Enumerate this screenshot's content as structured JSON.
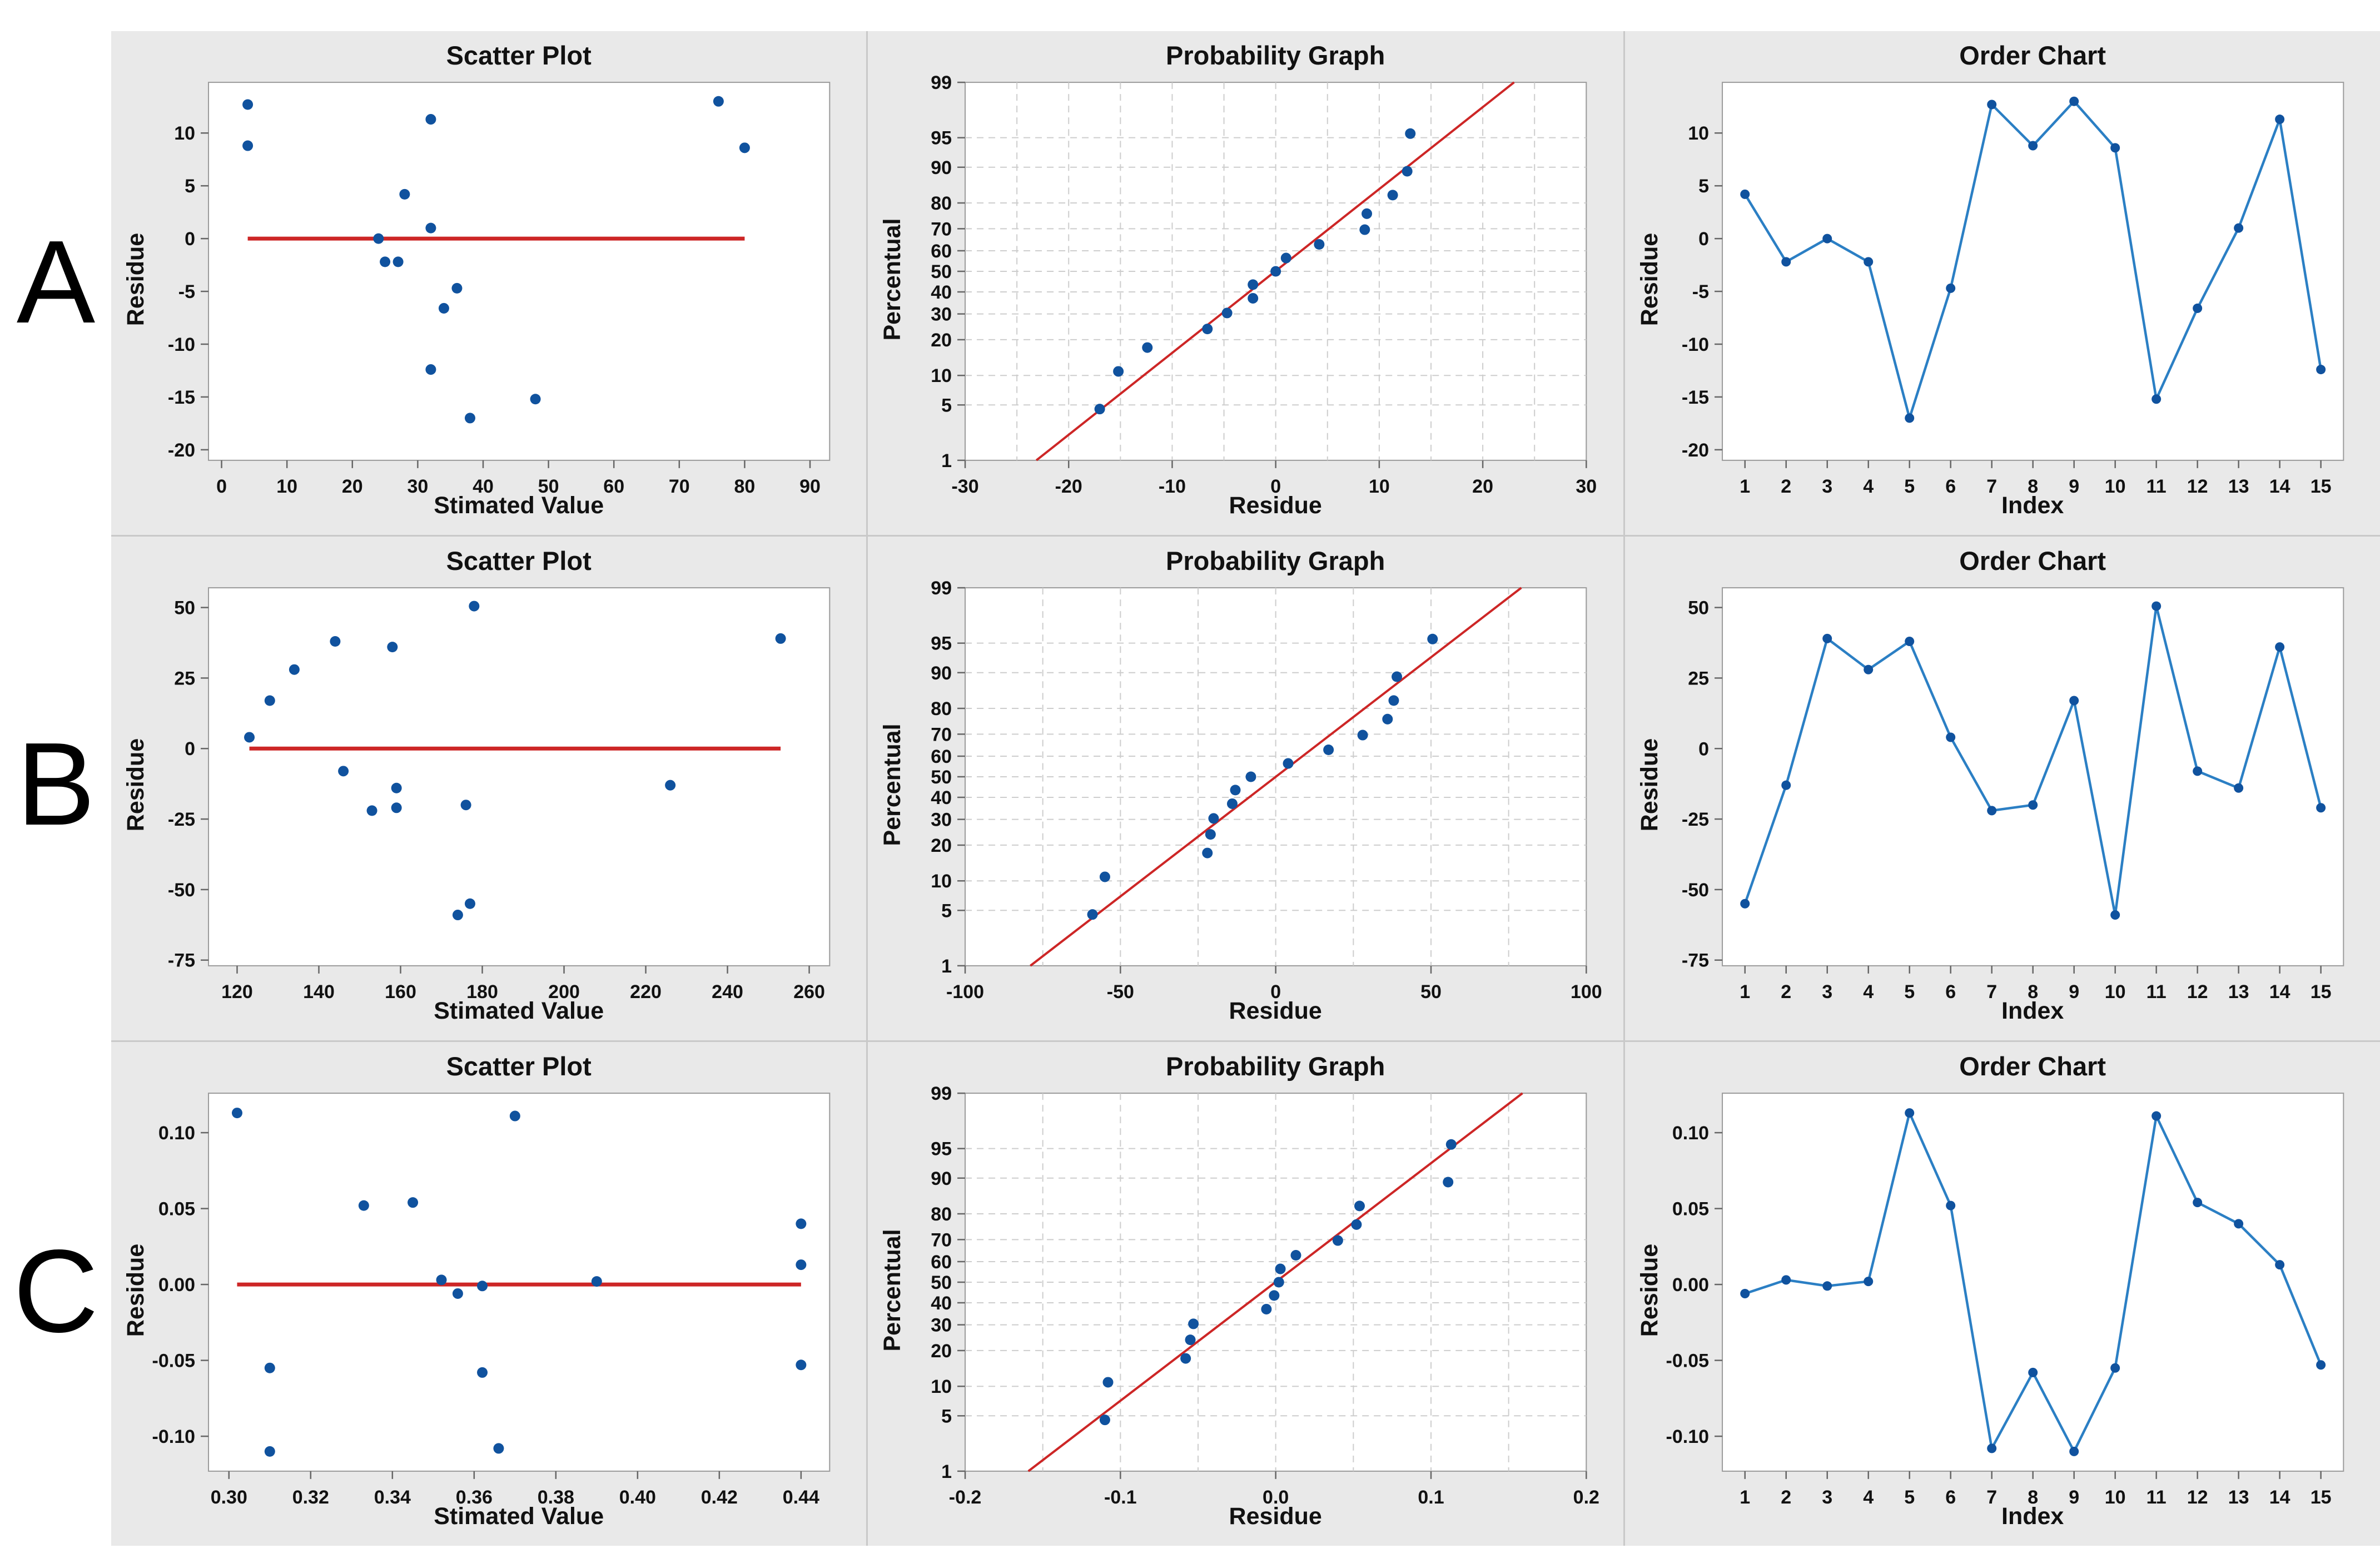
{
  "figure": {
    "kind": "residual-diagnostics-grid"
  },
  "rows": [
    {
      "label": "A"
    },
    {
      "label": "B"
    },
    {
      "label": "C"
    }
  ],
  "colors": {
    "point_blue": "#10529e",
    "line_blue": "#2b7fc4",
    "ref_red": "#cd2626",
    "panel_bg": "#e9e9e9",
    "divider_gray": "#c9c9c9",
    "plot_border": "#9b9b9b",
    "grid_dash": "#cdcdcd",
    "tick_mark": "#666666"
  },
  "chart_data": [
    {
      "row": "A",
      "type": "scatter",
      "title": "Scatter Plot",
      "xlabel": "Stimated Value",
      "ylabel": "Residue",
      "xlim": [
        -2,
        93
      ],
      "ylim": [
        -21,
        14.8
      ],
      "xticks": {
        "vals": [
          0,
          10,
          20,
          30,
          40,
          50,
          60,
          70,
          80,
          90
        ],
        "labels": [
          "0",
          "10",
          "20",
          "30",
          "40",
          "50",
          "60",
          "70",
          "80",
          "90"
        ]
      },
      "yticks": {
        "vals": [
          -20,
          -15,
          -10,
          -5,
          0,
          5,
          10
        ],
        "labels": [
          "-20",
          "-15",
          "-10",
          "-5",
          "0",
          "5",
          "10"
        ]
      },
      "refline_y": 0,
      "points": [
        [
          4,
          12.7
        ],
        [
          4,
          8.8
        ],
        [
          24,
          0
        ],
        [
          25,
          -2.2
        ],
        [
          27,
          -2.2
        ],
        [
          28,
          4.2
        ],
        [
          32,
          11.3
        ],
        [
          32,
          1
        ],
        [
          32,
          -12.4
        ],
        [
          34,
          -6.6
        ],
        [
          36,
          -4.7
        ],
        [
          38,
          -17
        ],
        [
          48,
          -15.2
        ],
        [
          76,
          13
        ],
        [
          80,
          8.6
        ]
      ]
    },
    {
      "row": "A",
      "type": "prob",
      "title": "Probability Graph",
      "xlabel": "Residue",
      "ylabel": "Percentual",
      "xlim": [
        -30,
        30
      ],
      "minor_step": 5,
      "xticks": {
        "vals": [
          -30,
          -20,
          -10,
          0,
          10,
          20,
          30
        ],
        "labels": [
          "-30",
          "-20",
          "-10",
          "0",
          "10",
          "20",
          "30"
        ]
      },
      "yticks": {
        "vals": [
          1,
          5,
          10,
          20,
          30,
          40,
          50,
          60,
          70,
          80,
          90,
          95,
          99
        ],
        "labels": [
          "1",
          "5",
          "10",
          "20",
          "30",
          "40",
          "50",
          "60",
          "70",
          "80",
          "90",
          "95",
          "99"
        ]
      },
      "points": [
        [
          -17,
          4.5
        ],
        [
          -15.2,
          10.9
        ],
        [
          -12.4,
          17.4
        ],
        [
          -6.6,
          23.9
        ],
        [
          -4.7,
          30.4
        ],
        [
          -2.2,
          37
        ],
        [
          -2.2,
          43.5
        ],
        [
          0,
          50
        ],
        [
          1,
          56.5
        ],
        [
          4.2,
          63
        ],
        [
          8.6,
          69.6
        ],
        [
          8.8,
          76.1
        ],
        [
          11.3,
          82.6
        ],
        [
          12.7,
          89.1
        ],
        [
          13,
          95.5
        ]
      ]
    },
    {
      "row": "A",
      "type": "order",
      "title": "Order Chart",
      "xlabel": "Index",
      "ylabel": "Residue",
      "xlim": [
        0.45,
        15.55
      ],
      "ylim": [
        -21,
        14.8
      ],
      "xticks": {
        "vals": [
          1,
          2,
          3,
          4,
          5,
          6,
          7,
          8,
          9,
          10,
          11,
          12,
          13,
          14,
          15
        ],
        "labels": [
          "1",
          "2",
          "3",
          "4",
          "5",
          "6",
          "7",
          "8",
          "9",
          "10",
          "11",
          "12",
          "13",
          "14",
          "15"
        ]
      },
      "yticks": {
        "vals": [
          -20,
          -15,
          -10,
          -5,
          0,
          5,
          10
        ],
        "labels": [
          "-20",
          "-15",
          "-10",
          "-5",
          "0",
          "5",
          "10"
        ]
      },
      "points": [
        [
          1,
          4.2
        ],
        [
          2,
          -2.2
        ],
        [
          3,
          0
        ],
        [
          4,
          -2.2
        ],
        [
          5,
          -17
        ],
        [
          6,
          -4.7
        ],
        [
          7,
          12.7
        ],
        [
          8,
          8.8
        ],
        [
          9,
          13
        ],
        [
          10,
          8.6
        ],
        [
          11,
          -15.2
        ],
        [
          12,
          -6.6
        ],
        [
          13,
          1
        ],
        [
          14,
          11.3
        ],
        [
          15,
          -12.4
        ]
      ]
    },
    {
      "row": "B",
      "type": "scatter",
      "title": "Scatter Plot",
      "xlabel": "Stimated Value",
      "ylabel": "Residue",
      "xlim": [
        113,
        265
      ],
      "ylim": [
        -77,
        57
      ],
      "xticks": {
        "vals": [
          120,
          140,
          160,
          180,
          200,
          220,
          240,
          260
        ],
        "labels": [
          "120",
          "140",
          "160",
          "180",
          "200",
          "220",
          "240",
          "260"
        ]
      },
      "yticks": {
        "vals": [
          -75,
          -50,
          -25,
          0,
          25,
          50
        ],
        "labels": [
          "-75",
          "-50",
          "-25",
          "0",
          "25",
          "50"
        ]
      },
      "refline_y": 0,
      "points": [
        [
          123,
          4
        ],
        [
          128,
          17
        ],
        [
          134,
          28
        ],
        [
          144,
          38
        ],
        [
          146,
          -8
        ],
        [
          153,
          -22
        ],
        [
          158,
          36
        ],
        [
          159,
          -14
        ],
        [
          159,
          -21
        ],
        [
          174,
          -59
        ],
        [
          176,
          -20
        ],
        [
          177,
          -55
        ],
        [
          178,
          50.5
        ],
        [
          226,
          -13
        ],
        [
          253,
          39
        ]
      ]
    },
    {
      "row": "B",
      "type": "prob",
      "title": "Probability Graph",
      "xlabel": "Residue",
      "ylabel": "Percentual",
      "xlim": [
        -100,
        100
      ],
      "minor_step": 25,
      "xticks": {
        "vals": [
          -100,
          -50,
          0,
          50,
          100
        ],
        "labels": [
          "-100",
          "-50",
          "0",
          "50",
          "100"
        ]
      },
      "yticks": {
        "vals": [
          1,
          5,
          10,
          20,
          30,
          40,
          50,
          60,
          70,
          80,
          90,
          95,
          99
        ],
        "labels": [
          "1",
          "5",
          "10",
          "20",
          "30",
          "40",
          "50",
          "60",
          "70",
          "80",
          "90",
          "95",
          "99"
        ]
      },
      "points": [
        [
          -59,
          4.5
        ],
        [
          -55,
          10.9
        ],
        [
          -22,
          17.4
        ],
        [
          -21,
          23.9
        ],
        [
          -20,
          30.4
        ],
        [
          -14,
          37
        ],
        [
          -13,
          43.5
        ],
        [
          -8,
          50
        ],
        [
          4,
          56.5
        ],
        [
          17,
          63
        ],
        [
          28,
          69.6
        ],
        [
          36,
          76.1
        ],
        [
          38,
          82.6
        ],
        [
          39,
          89.1
        ],
        [
          50.5,
          95.5
        ]
      ]
    },
    {
      "row": "B",
      "type": "order",
      "title": "Order Chart",
      "xlabel": "Index",
      "ylabel": "Residue",
      "xlim": [
        0.45,
        15.55
      ],
      "ylim": [
        -77,
        57
      ],
      "xticks": {
        "vals": [
          1,
          2,
          3,
          4,
          5,
          6,
          7,
          8,
          9,
          10,
          11,
          12,
          13,
          14,
          15
        ],
        "labels": [
          "1",
          "2",
          "3",
          "4",
          "5",
          "6",
          "7",
          "8",
          "9",
          "10",
          "11",
          "12",
          "13",
          "14",
          "15"
        ]
      },
      "yticks": {
        "vals": [
          -75,
          -50,
          -25,
          0,
          25,
          50
        ],
        "labels": [
          "-75",
          "-50",
          "-25",
          "0",
          "25",
          "50"
        ]
      },
      "points": [
        [
          1,
          -55
        ],
        [
          2,
          -13
        ],
        [
          3,
          39
        ],
        [
          4,
          28
        ],
        [
          5,
          38
        ],
        [
          6,
          4
        ],
        [
          7,
          -22
        ],
        [
          8,
          -20
        ],
        [
          9,
          17
        ],
        [
          10,
          -59
        ],
        [
          11,
          50.5
        ],
        [
          12,
          -8
        ],
        [
          13,
          -14
        ],
        [
          14,
          36
        ],
        [
          15,
          -21
        ]
      ]
    },
    {
      "row": "C",
      "type": "scatter",
      "title": "Scatter Plot",
      "xlabel": "Stimated Value",
      "ylabel": "Residue",
      "xlim": [
        0.295,
        0.447
      ],
      "ylim": [
        -0.123,
        0.126
      ],
      "xticks": {
        "vals": [
          0.3,
          0.32,
          0.34,
          0.36,
          0.38,
          0.4,
          0.42,
          0.44
        ],
        "labels": [
          "0.30",
          "0.32",
          "0.34",
          "0.36",
          "0.38",
          "0.40",
          "0.42",
          "0.44"
        ]
      },
      "yticks": {
        "vals": [
          -0.1,
          -0.05,
          0,
          0.05,
          0.1
        ],
        "labels": [
          "-0.10",
          "-0.05",
          "0.00",
          "0.05",
          "0.10"
        ]
      },
      "refline_y": 0,
      "points": [
        [
          0.302,
          0.113
        ],
        [
          0.31,
          -0.055
        ],
        [
          0.31,
          -0.11
        ],
        [
          0.333,
          0.052
        ],
        [
          0.345,
          0.054
        ],
        [
          0.352,
          0.003
        ],
        [
          0.356,
          -0.006
        ],
        [
          0.362,
          -0.001
        ],
        [
          0.362,
          -0.058
        ],
        [
          0.366,
          -0.108
        ],
        [
          0.37,
          0.111
        ],
        [
          0.39,
          0.002
        ],
        [
          0.44,
          0.04
        ],
        [
          0.44,
          0.013
        ],
        [
          0.44,
          -0.053
        ]
      ]
    },
    {
      "row": "C",
      "type": "prob",
      "title": "Probability Graph",
      "xlabel": "Residue",
      "ylabel": "Percentual",
      "xlim": [
        -0.2,
        0.2
      ],
      "minor_step": 0.05,
      "xticks": {
        "vals": [
          -0.2,
          -0.1,
          0,
          0.1,
          0.2
        ],
        "labels": [
          "-0.2",
          "-0.1",
          "0.0",
          "0.1",
          "0.2"
        ]
      },
      "yticks": {
        "vals": [
          1,
          5,
          10,
          20,
          30,
          40,
          50,
          60,
          70,
          80,
          90,
          95,
          99
        ],
        "labels": [
          "1",
          "5",
          "10",
          "20",
          "30",
          "40",
          "50",
          "60",
          "70",
          "80",
          "90",
          "95",
          "99"
        ]
      },
      "points": [
        [
          -0.11,
          4.5
        ],
        [
          -0.108,
          10.9
        ],
        [
          -0.058,
          17.4
        ],
        [
          -0.055,
          23.9
        ],
        [
          -0.053,
          30.4
        ],
        [
          -0.006,
          37
        ],
        [
          -0.001,
          43.5
        ],
        [
          0.002,
          50
        ],
        [
          0.003,
          56.5
        ],
        [
          0.013,
          63
        ],
        [
          0.04,
          69.6
        ],
        [
          0.052,
          76.1
        ],
        [
          0.054,
          82.6
        ],
        [
          0.111,
          89.1
        ],
        [
          0.113,
          95.5
        ]
      ]
    },
    {
      "row": "C",
      "type": "order",
      "title": "Order Chart",
      "xlabel": "Index",
      "ylabel": "Residue",
      "xlim": [
        0.45,
        15.55
      ],
      "ylim": [
        -0.123,
        0.126
      ],
      "xticks": {
        "vals": [
          1,
          2,
          3,
          4,
          5,
          6,
          7,
          8,
          9,
          10,
          11,
          12,
          13,
          14,
          15
        ],
        "labels": [
          "1",
          "2",
          "3",
          "4",
          "5",
          "6",
          "7",
          "8",
          "9",
          "10",
          "11",
          "12",
          "13",
          "14",
          "15"
        ]
      },
      "yticks": {
        "vals": [
          -0.1,
          -0.05,
          0,
          0.05,
          0.1
        ],
        "labels": [
          "-0.10",
          "-0.05",
          "0.00",
          "0.05",
          "0.10"
        ]
      },
      "points": [
        [
          1,
          -0.006
        ],
        [
          2,
          0.003
        ],
        [
          3,
          -0.001
        ],
        [
          4,
          0.002
        ],
        [
          5,
          0.113
        ],
        [
          6,
          0.052
        ],
        [
          7,
          -0.108
        ],
        [
          8,
          -0.058
        ],
        [
          9,
          -0.11
        ],
        [
          10,
          -0.055
        ],
        [
          11,
          0.111
        ],
        [
          12,
          0.054
        ],
        [
          13,
          0.04
        ],
        [
          14,
          0.013
        ],
        [
          15,
          -0.053
        ]
      ]
    }
  ]
}
